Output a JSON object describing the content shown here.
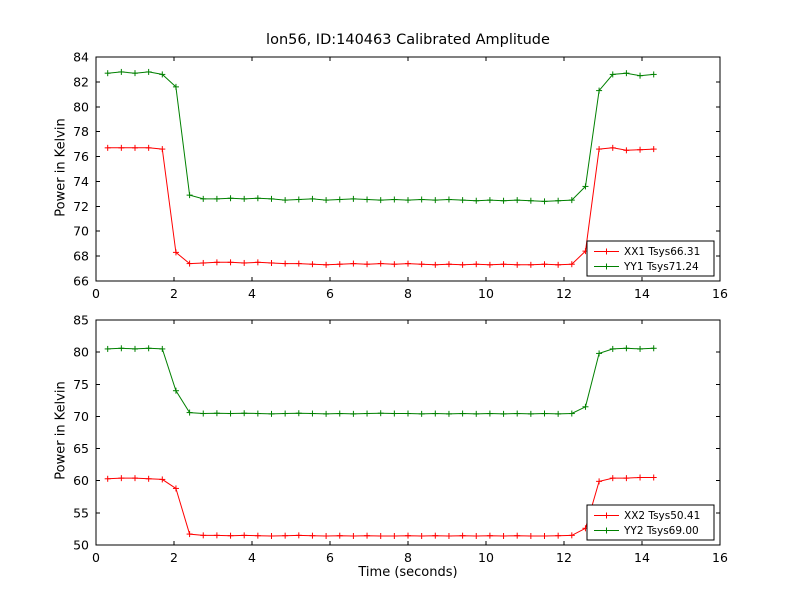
{
  "figure": {
    "title": "lon56, ID:140463 Calibrated Amplitude",
    "background": "#ffffff",
    "axes_color": "#000000"
  },
  "chart_data": [
    {
      "type": "line",
      "subplot": "top",
      "xlabel": "",
      "ylabel": "Power in Kelvin",
      "xlim": [
        0,
        16
      ],
      "ylim": [
        66,
        84
      ],
      "xticks": [
        0,
        2,
        4,
        6,
        8,
        10,
        12,
        14,
        16
      ],
      "yticks": [
        66,
        68,
        70,
        72,
        74,
        76,
        78,
        80,
        82,
        84
      ],
      "grid": false,
      "legend_position": "lower right",
      "x": [
        0.3,
        0.65,
        1.0,
        1.35,
        1.7,
        2.05,
        2.4,
        2.75,
        3.1,
        3.45,
        3.8,
        4.15,
        4.5,
        4.85,
        5.2,
        5.55,
        5.9,
        6.25,
        6.6,
        6.95,
        7.3,
        7.65,
        8.0,
        8.35,
        8.7,
        9.05,
        9.4,
        9.75,
        10.1,
        10.45,
        10.8,
        11.15,
        11.5,
        11.85,
        12.2,
        12.55,
        12.9,
        13.25,
        13.6,
        13.95,
        14.3
      ],
      "series": [
        {
          "name": "XX1 Tsys66.31",
          "color": "#ff0000",
          "marker": "+",
          "values": [
            76.7,
            76.7,
            76.7,
            76.7,
            76.6,
            68.3,
            67.4,
            67.45,
            67.5,
            67.5,
            67.45,
            67.5,
            67.45,
            67.4,
            67.4,
            67.35,
            67.3,
            67.35,
            67.4,
            67.35,
            67.4,
            67.35,
            67.4,
            67.35,
            67.3,
            67.35,
            67.3,
            67.35,
            67.3,
            67.35,
            67.3,
            67.3,
            67.35,
            67.3,
            67.35,
            68.4,
            76.6,
            76.7,
            76.5,
            76.55,
            76.6
          ]
        },
        {
          "name": "YY1 Tsys71.24",
          "color": "#008000",
          "marker": "+",
          "values": [
            82.7,
            82.8,
            82.7,
            82.8,
            82.6,
            81.6,
            72.9,
            72.6,
            72.6,
            72.65,
            72.6,
            72.65,
            72.6,
            72.5,
            72.55,
            72.6,
            72.5,
            72.55,
            72.6,
            72.55,
            72.5,
            72.55,
            72.5,
            72.55,
            72.5,
            72.55,
            72.5,
            72.45,
            72.5,
            72.45,
            72.5,
            72.45,
            72.4,
            72.45,
            72.5,
            73.6,
            81.3,
            82.6,
            82.7,
            82.5,
            82.6
          ]
        }
      ]
    },
    {
      "type": "line",
      "subplot": "bottom",
      "xlabel": "Time (seconds)",
      "ylabel": "Power in Kelvin",
      "xlim": [
        0,
        16
      ],
      "ylim": [
        50,
        85
      ],
      "xticks": [
        0,
        2,
        4,
        6,
        8,
        10,
        12,
        14,
        16
      ],
      "yticks": [
        50,
        55,
        60,
        65,
        70,
        75,
        80,
        85
      ],
      "grid": false,
      "legend_position": "lower right",
      "x": [
        0.3,
        0.65,
        1.0,
        1.35,
        1.7,
        2.05,
        2.4,
        2.75,
        3.1,
        3.45,
        3.8,
        4.15,
        4.5,
        4.85,
        5.2,
        5.55,
        5.9,
        6.25,
        6.6,
        6.95,
        7.3,
        7.65,
        8.0,
        8.35,
        8.7,
        9.05,
        9.4,
        9.75,
        10.1,
        10.45,
        10.8,
        11.15,
        11.5,
        11.85,
        12.2,
        12.55,
        12.9,
        13.25,
        13.6,
        13.95,
        14.3
      ],
      "series": [
        {
          "name": "XX2 Tsys50.41",
          "color": "#ff0000",
          "marker": "+",
          "values": [
            60.3,
            60.4,
            60.4,
            60.3,
            60.2,
            58.8,
            51.7,
            51.5,
            51.5,
            51.45,
            51.5,
            51.45,
            51.4,
            51.45,
            51.5,
            51.45,
            51.4,
            51.45,
            51.4,
            51.45,
            51.4,
            51.4,
            51.45,
            51.4,
            51.45,
            51.4,
            51.45,
            51.4,
            51.45,
            51.4,
            51.45,
            51.4,
            51.4,
            51.45,
            51.5,
            52.6,
            59.9,
            60.4,
            60.4,
            60.5,
            60.5
          ]
        },
        {
          "name": "YY2 Tsys69.00",
          "color": "#008000",
          "marker": "+",
          "values": [
            80.5,
            80.6,
            80.5,
            80.6,
            80.5,
            74.0,
            70.6,
            70.45,
            70.5,
            70.45,
            70.5,
            70.45,
            70.4,
            70.45,
            70.5,
            70.45,
            70.4,
            70.45,
            70.4,
            70.45,
            70.5,
            70.45,
            70.45,
            70.4,
            70.45,
            70.4,
            70.45,
            70.4,
            70.45,
            70.4,
            70.45,
            70.4,
            70.45,
            70.4,
            70.45,
            71.5,
            79.8,
            80.5,
            80.6,
            80.5,
            80.6
          ]
        }
      ]
    }
  ]
}
